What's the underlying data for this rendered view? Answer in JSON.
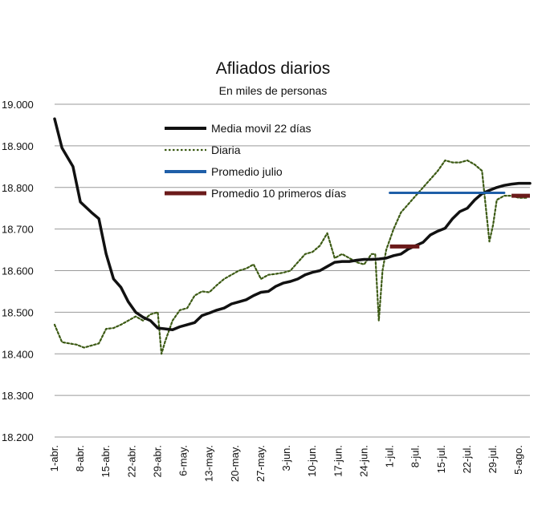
{
  "chart_data": {
    "type": "line",
    "title": "Afliados diarios",
    "subtitle": "En miles de personas",
    "xlabel": "",
    "ylabel": "",
    "ylim": [
      18200,
      19000
    ],
    "yticks": [
      18200,
      18300,
      18400,
      18500,
      18600,
      18700,
      18800,
      18900,
      19000
    ],
    "ytick_labels": [
      "18.200",
      "18.300",
      "18.400",
      "18.500",
      "18.600",
      "18.700",
      "18.800",
      "18.900",
      "19.000"
    ],
    "xlim": [
      1,
      130
    ],
    "xticks": [
      1,
      8,
      15,
      22,
      29,
      36,
      43,
      50,
      57,
      64,
      71,
      78,
      85,
      92,
      99,
      106,
      113,
      120,
      127
    ],
    "xtick_labels": [
      "1-abr.",
      "8-abr.",
      "15-abr.",
      "22-abr.",
      "29-abr.",
      "6-may.",
      "13-may.",
      "20-may.",
      "27-may.",
      "3-jun.",
      "10-jun.",
      "17-jun.",
      "24-jun.",
      "1-jul.",
      "8-jul.",
      "15-jul.",
      "22-jul.",
      "29-jul.",
      "5-ago."
    ],
    "grid": true,
    "legend_position": "top-left",
    "series": [
      {
        "name": "Media movil 22 días",
        "style": "solid",
        "color": "#111111",
        "x": [
          1,
          3,
          6,
          8,
          11,
          13,
          15,
          17,
          19,
          21,
          23,
          25,
          27,
          29,
          31,
          33,
          35,
          37,
          39,
          41,
          43,
          45,
          47,
          49,
          51,
          53,
          55,
          57,
          59,
          61,
          63,
          65,
          67,
          69,
          71,
          73,
          75,
          77,
          79,
          81,
          83,
          85,
          87,
          89,
          91,
          93,
          95,
          97,
          99,
          101,
          103,
          105,
          107,
          109,
          111,
          113,
          115,
          117,
          119,
          121,
          123,
          125,
          127,
          129,
          131
        ],
        "values": [
          18965,
          18895,
          18850,
          18765,
          18740,
          18725,
          18640,
          18580,
          18560,
          18525,
          18500,
          18488,
          18480,
          18462,
          18460,
          18458,
          18465,
          18470,
          18475,
          18492,
          18498,
          18505,
          18510,
          18520,
          18525,
          18530,
          18540,
          18548,
          18550,
          18562,
          18570,
          18574,
          18580,
          18590,
          18596,
          18600,
          18610,
          18620,
          18622,
          18622,
          18625,
          18627,
          18627,
          18628,
          18630,
          18636,
          18640,
          18652,
          18660,
          18668,
          18686,
          18695,
          18702,
          18725,
          18742,
          18750,
          18770,
          18785,
          18793,
          18800,
          18805,
          18808,
          18810,
          18810,
          18810
        ]
      },
      {
        "name": "Diaria",
        "style": "dotted",
        "color": "#3c5a14",
        "x": [
          1,
          3,
          5,
          7,
          9,
          11,
          13,
          15,
          17,
          19,
          21,
          23,
          25,
          27,
          29,
          30,
          31,
          33,
          35,
          37,
          39,
          41,
          43,
          45,
          47,
          49,
          51,
          53,
          55,
          57,
          59,
          61,
          63,
          65,
          67,
          69,
          71,
          73,
          75,
          77,
          79,
          81,
          83,
          85,
          87,
          88,
          89,
          90,
          91,
          93,
          95,
          97,
          99,
          101,
          103,
          105,
          107,
          109,
          111,
          113,
          115,
          117,
          119,
          120,
          121,
          123,
          125,
          127,
          129
        ],
        "values": [
          18470,
          18428,
          18425,
          18422,
          18415,
          18420,
          18425,
          18460,
          18462,
          18470,
          18480,
          18490,
          18480,
          18495,
          18500,
          18400,
          18430,
          18480,
          18505,
          18510,
          18540,
          18550,
          18548,
          18565,
          18580,
          18590,
          18600,
          18605,
          18615,
          18580,
          18590,
          18592,
          18595,
          18600,
          18620,
          18640,
          18645,
          18660,
          18690,
          18630,
          18640,
          18630,
          18620,
          18615,
          18640,
          18640,
          18480,
          18600,
          18650,
          18700,
          18740,
          18760,
          18780,
          18800,
          18820,
          18840,
          18865,
          18860,
          18860,
          18865,
          18855,
          18840,
          18670,
          18710,
          18770,
          18780,
          18780,
          18775,
          18775
        ]
      },
      {
        "name": "Promedio julio",
        "style": "solid",
        "color": "#1f5fa8",
        "x": [
          92,
          123
        ],
        "values": [
          18787,
          18787
        ]
      },
      {
        "name": "Promedio 10 primeros días",
        "style": "solid",
        "color": "#6b1a1a",
        "segments": [
          {
            "x": [
              92,
              100
            ],
            "values": [
              18658,
              18658
            ]
          },
          {
            "x": [
              125,
              131
            ],
            "values": [
              18780,
              18780
            ]
          }
        ]
      }
    ]
  }
}
